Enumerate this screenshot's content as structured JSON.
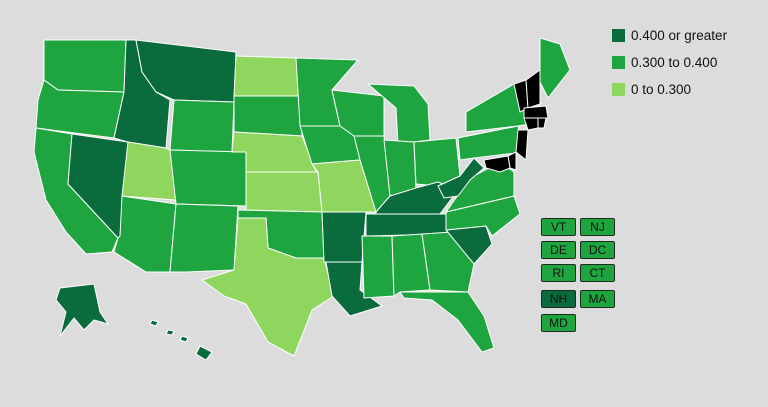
{
  "colors": {
    "high": "#0a6b3d",
    "mid": "#1fa53f",
    "low": "#8fd65e",
    "background": "#dcdcdc"
  },
  "legend": [
    {
      "label": "0.400 or greater",
      "color": "#0a6b3d"
    },
    {
      "label": "0.300 to 0.400",
      "color": "#1fa53f"
    },
    {
      "label": "0 to 0.300",
      "color": "#8fd65e"
    }
  ],
  "states": {
    "WA": "mid",
    "OR": "mid",
    "CA": "mid",
    "NV": "high",
    "ID": "high",
    "MT": "high",
    "WY": "mid",
    "UT": "low",
    "AZ": "mid",
    "CO": "mid",
    "NM": "mid",
    "ND": "low",
    "SD": "mid",
    "NE": "low",
    "KS": "low",
    "OK": "mid",
    "TX": "low",
    "MN": "mid",
    "IA": "mid",
    "MO": "low",
    "AR": "high",
    "LA": "high",
    "WI": "mid",
    "IL": "mid",
    "MI": "mid",
    "IN": "mid",
    "OH": "mid",
    "KY": "high",
    "TN": "high",
    "MS": "mid",
    "AL": "mid",
    "GA": "mid",
    "FL": "mid",
    "SC": "high",
    "NC": "mid",
    "VA": "mid",
    "WV": "high",
    "PA": "mid",
    "NY": "mid",
    "ME": "mid",
    "AK": "high",
    "HI": "high"
  },
  "small_states": [
    {
      "abbr": "VT",
      "level": "mid"
    },
    {
      "abbr": "NJ",
      "level": "mid"
    },
    {
      "abbr": "DE",
      "level": "mid"
    },
    {
      "abbr": "DC",
      "level": "mid"
    },
    {
      "abbr": "RI",
      "level": "mid"
    },
    {
      "abbr": "CT",
      "level": "mid"
    },
    {
      "abbr": "NH",
      "level": "high"
    },
    {
      "abbr": "MA",
      "level": "mid"
    },
    {
      "abbr": "MD",
      "level": "mid"
    }
  ]
}
